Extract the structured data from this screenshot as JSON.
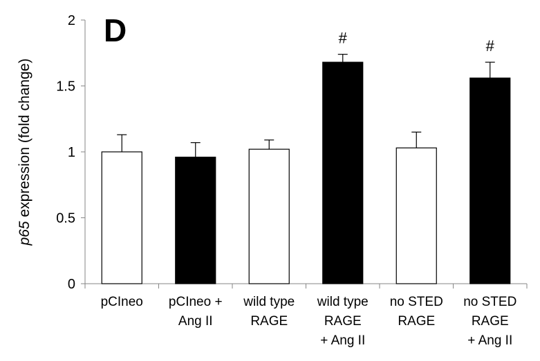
{
  "chart_data": {
    "type": "bar",
    "panel_label": "D",
    "ylabel_italic": "p65",
    "ylabel_rest": " expression (fold change)",
    "ylim": [
      0,
      2
    ],
    "yticks": [
      "0",
      "0.5",
      "1",
      "1.5",
      "2"
    ],
    "ytick_values": [
      0,
      0.5,
      1,
      1.5,
      2
    ],
    "grid": false,
    "legend": "none",
    "categories": [
      [
        "pCIneo"
      ],
      [
        "pCIneo +",
        "Ang II"
      ],
      [
        "wild type",
        "RAGE"
      ],
      [
        "wild type",
        "RAGE",
        "+ Ang II"
      ],
      [
        "no STED",
        "RAGE"
      ],
      [
        "no STED",
        "RAGE",
        "+ Ang II"
      ]
    ],
    "values": [
      1.0,
      0.96,
      1.02,
      1.68,
      1.03,
      1.56
    ],
    "errors": [
      0.13,
      0.11,
      0.07,
      0.06,
      0.12,
      0.12
    ],
    "bar_colors": [
      "#ffffff",
      "#000000",
      "#ffffff",
      "#000000",
      "#ffffff",
      "#000000"
    ],
    "annotations": [
      "",
      "",
      "",
      "#",
      "",
      "#"
    ]
  }
}
